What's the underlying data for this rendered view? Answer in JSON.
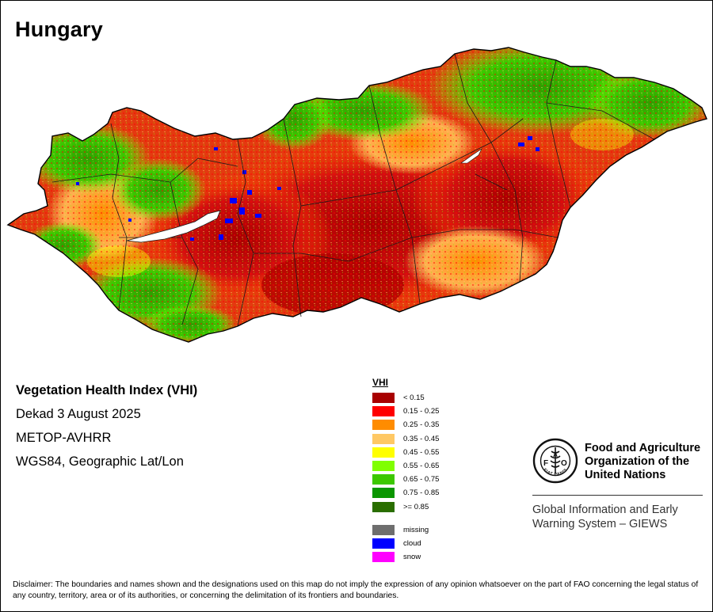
{
  "title": "Hungary",
  "info": {
    "index_name": "Vegetation Health Index (VHI)",
    "period": "Dekad 3 August 2025",
    "sensor": "METOP-AVHRR",
    "projection": "WGS84, Geographic Lat/Lon"
  },
  "legend": {
    "title": "VHI",
    "classes": [
      {
        "label": "< 0.15",
        "color": "#a80000"
      },
      {
        "label": "0.15 - 0.25",
        "color": "#ff0000"
      },
      {
        "label": "0.25 - 0.35",
        "color": "#ff8c00"
      },
      {
        "label": "0.35 - 0.45",
        "color": "#ffc864"
      },
      {
        "label": "0.45 - 0.55",
        "color": "#ffff00"
      },
      {
        "label": "0.55 - 0.65",
        "color": "#80ff00"
      },
      {
        "label": "0.65 - 0.75",
        "color": "#3cc800"
      },
      {
        "label": "0.75 - 0.85",
        "color": "#0a9600"
      },
      {
        "label": ">= 0.85",
        "color": "#2a6e00"
      }
    ],
    "special": [
      {
        "label": "missing",
        "color": "#6e6e6e"
      },
      {
        "label": "cloud",
        "color": "#0000ff"
      },
      {
        "label": "snow",
        "color": "#ff00ff"
      }
    ]
  },
  "map": {
    "country": "Hungary",
    "lake_color": "#ffffff",
    "border_color": "#1a1a1a"
  },
  "organization": {
    "name_line1": "Food and Agriculture",
    "name_line2": "Organization of the",
    "name_line3": "United Nations",
    "logo_text": "FIAT PANIS",
    "system_line1": "Global Information and Early",
    "system_line2": "Warning System – GIEWS"
  },
  "disclaimer": "Disclaimer: The boundaries and names shown and the designations used on this map do not imply the expression of any opinion whatsoever on the part of FAO concerning the legal status of any country, territory, area or of its authorities, or concerning the delimitation of its frontiers and boundaries."
}
